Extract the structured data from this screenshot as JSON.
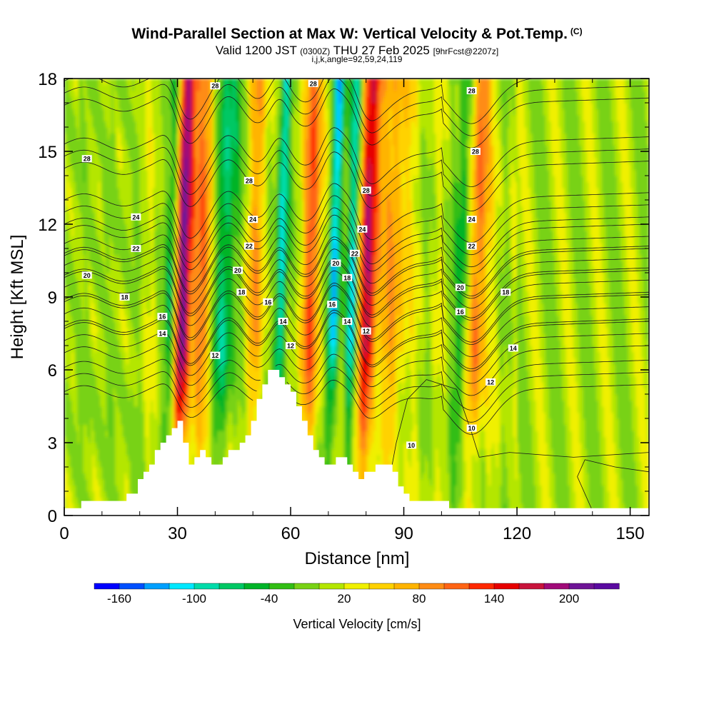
{
  "chart_data": {
    "type": "heatmap",
    "title": "Wind-Parallel Section at Max W: Vertical Velocity & Pot.Temp.",
    "title_mark": "(C)",
    "subtitle_prefix": "Valid 1200 JST",
    "subtitle_utc": "(0300Z)",
    "subtitle_date": "THU 27 Feb 2025",
    "subtitle_fcst": "[9hrFcst@2207z]",
    "subtitle2": "i,j,k,angle=92,59,24,119",
    "xlabel": "Distance [nm]",
    "ylabel": "Height [Kft MSL]",
    "xlim": [
      0,
      155
    ],
    "ylim": [
      0,
      18
    ],
    "x_ticks": [
      0,
      30,
      60,
      90,
      120,
      150
    ],
    "y_ticks": [
      0,
      3,
      6,
      9,
      12,
      15,
      18
    ],
    "colorbar": {
      "label": "Vertical Velocity [cm/s]",
      "min": -180,
      "max": 240,
      "step": 20,
      "tick_values": [
        -160,
        -100,
        -40,
        20,
        80,
        140,
        200
      ],
      "tick_labels": [
        "-160",
        "-100",
        "-40",
        "20",
        "80",
        "140",
        "200"
      ],
      "colors": [
        "#0000ff",
        "#0050ff",
        "#00a0ff",
        "#00e8ff",
        "#00dcaa",
        "#00c864",
        "#00b428",
        "#32be14",
        "#78d214",
        "#b4e600",
        "#f0f000",
        "#ffd200",
        "#ffb400",
        "#ff8c14",
        "#ff6414",
        "#ff2800",
        "#e60000",
        "#c8143c",
        "#a00a78",
        "#6e1496",
        "#5a0aa0"
      ]
    },
    "terrain_profile": {
      "x": [
        0,
        8,
        15,
        18,
        22,
        26,
        30,
        33,
        36,
        40,
        44,
        48,
        52,
        55,
        58,
        62,
        66,
        70,
        74,
        78,
        80,
        83,
        86,
        90,
        95,
        100,
        103,
        110,
        120,
        140,
        155
      ],
      "y": [
        0.3,
        0.6,
        0.6,
        1.0,
        2.1,
        3.2,
        3.8,
        2.0,
        2.8,
        2.0,
        2.7,
        3.2,
        5.4,
        6.1,
        5.6,
        4.3,
        2.7,
        2.0,
        2.5,
        1.4,
        1.8,
        2.2,
        2.0,
        0.8,
        0.6,
        0.6,
        0.3,
        0.3,
        0.3,
        0.3,
        0.3
      ]
    },
    "updraft_bands": [
      {
        "x": 31,
        "w": 2.2,
        "value": 200
      },
      {
        "x": 36,
        "w": 3.0,
        "value": 80
      },
      {
        "x": 50,
        "w": 2.5,
        "value": 60
      },
      {
        "x": 65,
        "w": 2.5,
        "value": 100
      },
      {
        "x": 80,
        "w": 2.5,
        "value": 170
      },
      {
        "x": 87,
        "w": 3.5,
        "value": 70
      },
      {
        "x": 109,
        "w": 2.5,
        "value": 100
      }
    ],
    "downdraft_bands": [
      {
        "x": 28,
        "w": 1.5,
        "value": -90
      },
      {
        "x": 42,
        "w": 3.0,
        "value": -90
      },
      {
        "x": 57,
        "w": 1.5,
        "value": -120
      },
      {
        "x": 71,
        "w": 1.5,
        "value": -140
      },
      {
        "x": 76,
        "w": 1.5,
        "value": -120
      },
      {
        "x": 105,
        "w": 2.0,
        "value": -70
      }
    ],
    "theta_contours": [
      {
        "value": 10,
        "base": 0.0
      },
      {
        "value": 12,
        "base": 5.6
      },
      {
        "value": 14,
        "base": 7.2
      },
      {
        "value": 16,
        "base": 8.3
      },
      {
        "value": 18,
        "base": 9.4
      },
      {
        "value": 20,
        "base": 10.3
      },
      {
        "value": 22,
        "base": 11.2
      },
      {
        "value": 24,
        "base": 12.5
      },
      {
        "value": 26,
        "base": 14.8
      },
      {
        "value": 28,
        "base": 17.4
      }
    ],
    "contour_labels": [
      {
        "text": "28",
        "x": 6,
        "y": 14.7
      },
      {
        "text": "24",
        "x": 19,
        "y": 12.3
      },
      {
        "text": "22",
        "x": 19,
        "y": 11.0
      },
      {
        "text": "20",
        "x": 6,
        "y": 9.9
      },
      {
        "text": "18",
        "x": 16,
        "y": 9.0
      },
      {
        "text": "16",
        "x": 26,
        "y": 8.2
      },
      {
        "text": "14",
        "x": 26,
        "y": 7.5
      },
      {
        "text": "12",
        "x": 40,
        "y": 6.6
      },
      {
        "text": "28",
        "x": 40,
        "y": 17.7
      },
      {
        "text": "28",
        "x": 49,
        "y": 13.8
      },
      {
        "text": "24",
        "x": 50,
        "y": 12.2
      },
      {
        "text": "22",
        "x": 49,
        "y": 11.1
      },
      {
        "text": "20",
        "x": 46,
        "y": 10.1
      },
      {
        "text": "18",
        "x": 47,
        "y": 9.2
      },
      {
        "text": "16",
        "x": 54,
        "y": 8.8
      },
      {
        "text": "14",
        "x": 58,
        "y": 8.0
      },
      {
        "text": "12",
        "x": 60,
        "y": 7.0
      },
      {
        "text": "28",
        "x": 66,
        "y": 17.8
      },
      {
        "text": "28",
        "x": 80,
        "y": 13.4
      },
      {
        "text": "24",
        "x": 79,
        "y": 11.8
      },
      {
        "text": "22",
        "x": 77,
        "y": 10.8
      },
      {
        "text": "20",
        "x": 72,
        "y": 10.4
      },
      {
        "text": "18",
        "x": 75,
        "y": 9.8
      },
      {
        "text": "16",
        "x": 71,
        "y": 8.7
      },
      {
        "text": "14",
        "x": 75,
        "y": 8.0
      },
      {
        "text": "12",
        "x": 80,
        "y": 7.6
      },
      {
        "text": "10",
        "x": 92,
        "y": 2.9
      },
      {
        "text": "28",
        "x": 108,
        "y": 17.5
      },
      {
        "text": "28",
        "x": 109,
        "y": 15.0
      },
      {
        "text": "24",
        "x": 108,
        "y": 12.2
      },
      {
        "text": "22",
        "x": 108,
        "y": 11.1
      },
      {
        "text": "20",
        "x": 105,
        "y": 9.4
      },
      {
        "text": "18",
        "x": 117,
        "y": 9.2
      },
      {
        "text": "16",
        "x": 105,
        "y": 8.4
      },
      {
        "text": "14",
        "x": 119,
        "y": 6.9
      },
      {
        "text": "12",
        "x": 113,
        "y": 5.5
      },
      {
        "text": "10",
        "x": 108,
        "y": 3.6
      }
    ]
  }
}
